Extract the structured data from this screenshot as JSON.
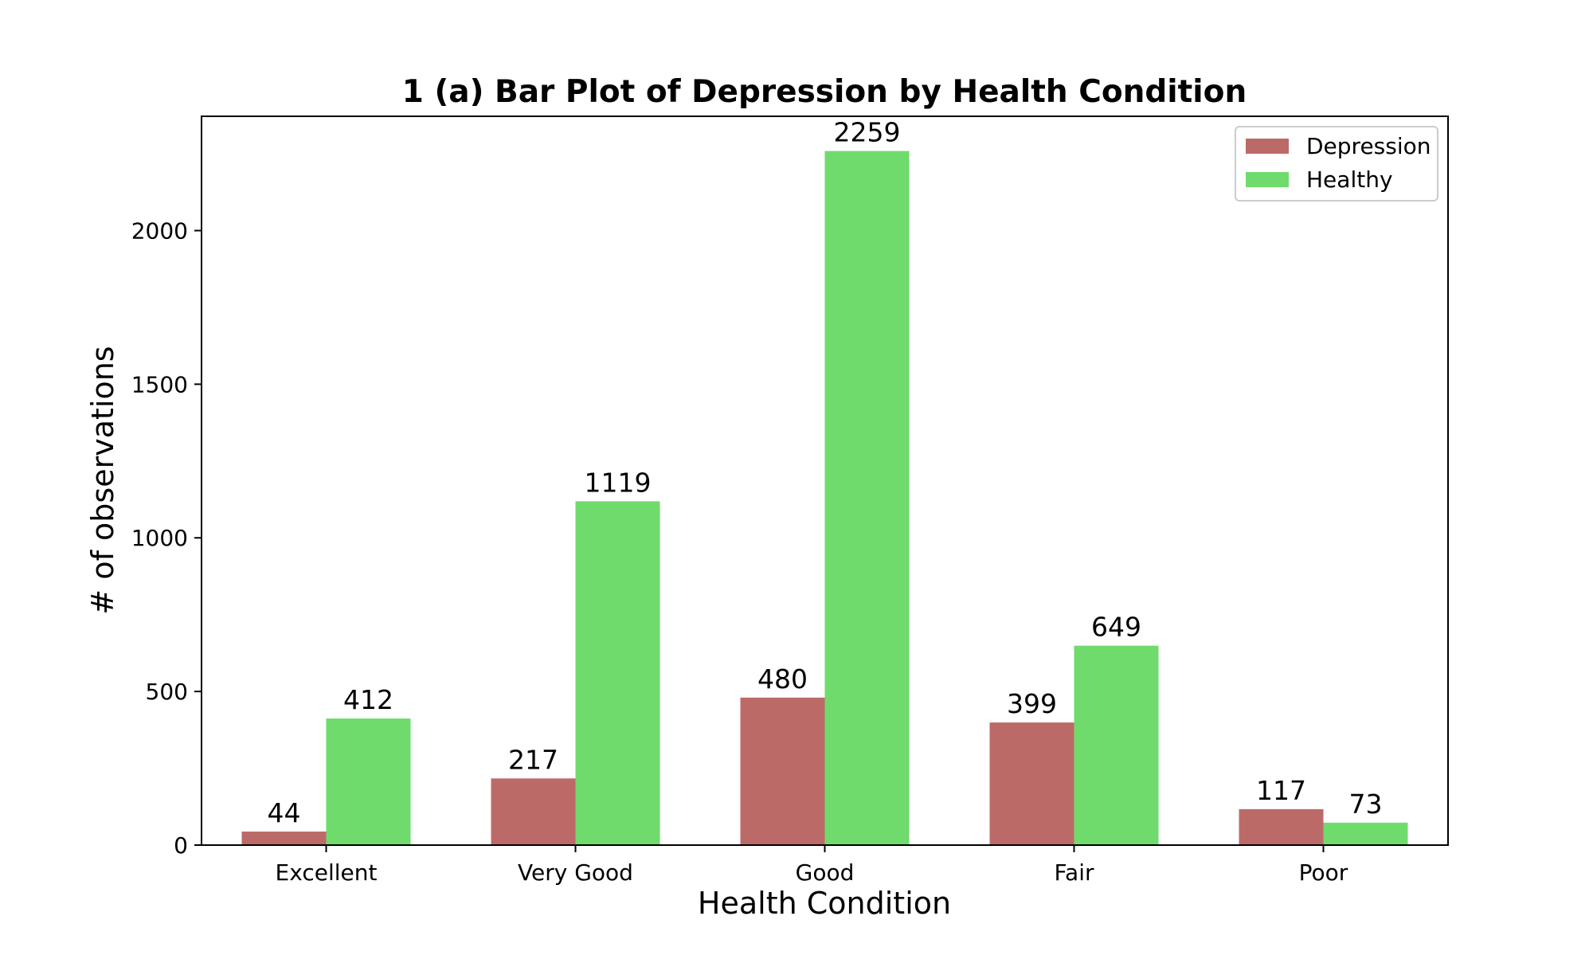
{
  "chart_data": {
    "type": "bar",
    "title": "1 (a) Bar Plot of Depression by Health Condition",
    "xlabel": "Health Condition",
    "ylabel": "# of observations",
    "categories": [
      "Excellent",
      "Very Good",
      "Good",
      "Fair",
      "Poor"
    ],
    "series": [
      {
        "name": "Depression",
        "values": [
          44,
          217,
          480,
          399,
          117
        ],
        "color": "#bc6a68"
      },
      {
        "name": "Healthy",
        "values": [
          412,
          1119,
          2259,
          649,
          73
        ],
        "color": "#6fdb6c"
      }
    ],
    "ylim": [
      0,
      2372
    ],
    "yticks": [
      0,
      500,
      1000,
      1500,
      2000
    ],
    "ytick_labels": [
      "0",
      "500",
      "1000",
      "1500",
      "2000"
    ],
    "grid": false,
    "legend_position": "top-right"
  }
}
